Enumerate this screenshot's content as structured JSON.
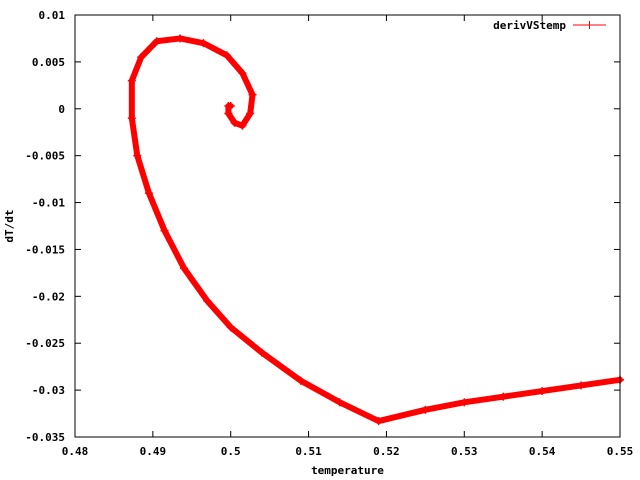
{
  "chart_data": {
    "type": "line",
    "title": "",
    "xlabel": "temperature",
    "ylabel": "dT/dt",
    "xlim": [
      0.48,
      0.55
    ],
    "ylim": [
      -0.035,
      0.01
    ],
    "x_ticks": [
      {
        "value": 0.48,
        "label": "0.48"
      },
      {
        "value": 0.49,
        "label": "0.49"
      },
      {
        "value": 0.5,
        "label": "0.5"
      },
      {
        "value": 0.51,
        "label": "0.51"
      },
      {
        "value": 0.52,
        "label": "0.52"
      },
      {
        "value": 0.53,
        "label": "0.53"
      },
      {
        "value": 0.54,
        "label": "0.54"
      },
      {
        "value": 0.55,
        "label": "0.55"
      }
    ],
    "y_ticks": [
      {
        "value": 0.01,
        "label": "0.01"
      },
      {
        "value": 0.005,
        "label": "0.005"
      },
      {
        "value": 0,
        "label": "0"
      },
      {
        "value": -0.005,
        "label": "-0.005"
      },
      {
        "value": -0.01,
        "label": "-0.01"
      },
      {
        "value": -0.015,
        "label": "-0.015"
      },
      {
        "value": -0.02,
        "label": "-0.02"
      },
      {
        "value": -0.025,
        "label": "-0.025"
      },
      {
        "value": -0.03,
        "label": "-0.03"
      },
      {
        "value": -0.035,
        "label": "-0.035"
      }
    ],
    "grid": false,
    "legend_position": "top-right",
    "series": [
      {
        "name": "derivVStemp",
        "color": "#ff0000",
        "points": [
          [
            0.55,
            -0.0289
          ],
          [
            0.545,
            -0.0295
          ],
          [
            0.54,
            -0.0301
          ],
          [
            0.535,
            -0.0307
          ],
          [
            0.53,
            -0.0313
          ],
          [
            0.525,
            -0.0321
          ],
          [
            0.519,
            -0.0333
          ],
          [
            0.514,
            -0.0313
          ],
          [
            0.509,
            -0.029
          ],
          [
            0.504,
            -0.026
          ],
          [
            0.5,
            -0.0233
          ],
          [
            0.497,
            -0.0205
          ],
          [
            0.494,
            -0.017
          ],
          [
            0.4915,
            -0.013
          ],
          [
            0.4895,
            -0.009
          ],
          [
            0.488,
            -0.005
          ],
          [
            0.4873,
            -0.001
          ],
          [
            0.4873,
            0.003
          ],
          [
            0.4885,
            0.0055
          ],
          [
            0.4905,
            0.0072
          ],
          [
            0.4935,
            0.0075
          ],
          [
            0.4965,
            0.007
          ],
          [
            0.4995,
            0.0057
          ],
          [
            0.5015,
            0.0038
          ],
          [
            0.5028,
            0.0015
          ],
          [
            0.5025,
            -0.0005
          ],
          [
            0.5015,
            -0.0018
          ],
          [
            0.5005,
            -0.0015
          ],
          [
            0.4997,
            -0.0005
          ],
          [
            0.4997,
            0.0003
          ],
          [
            0.5,
            0.0003
          ]
        ]
      }
    ]
  }
}
